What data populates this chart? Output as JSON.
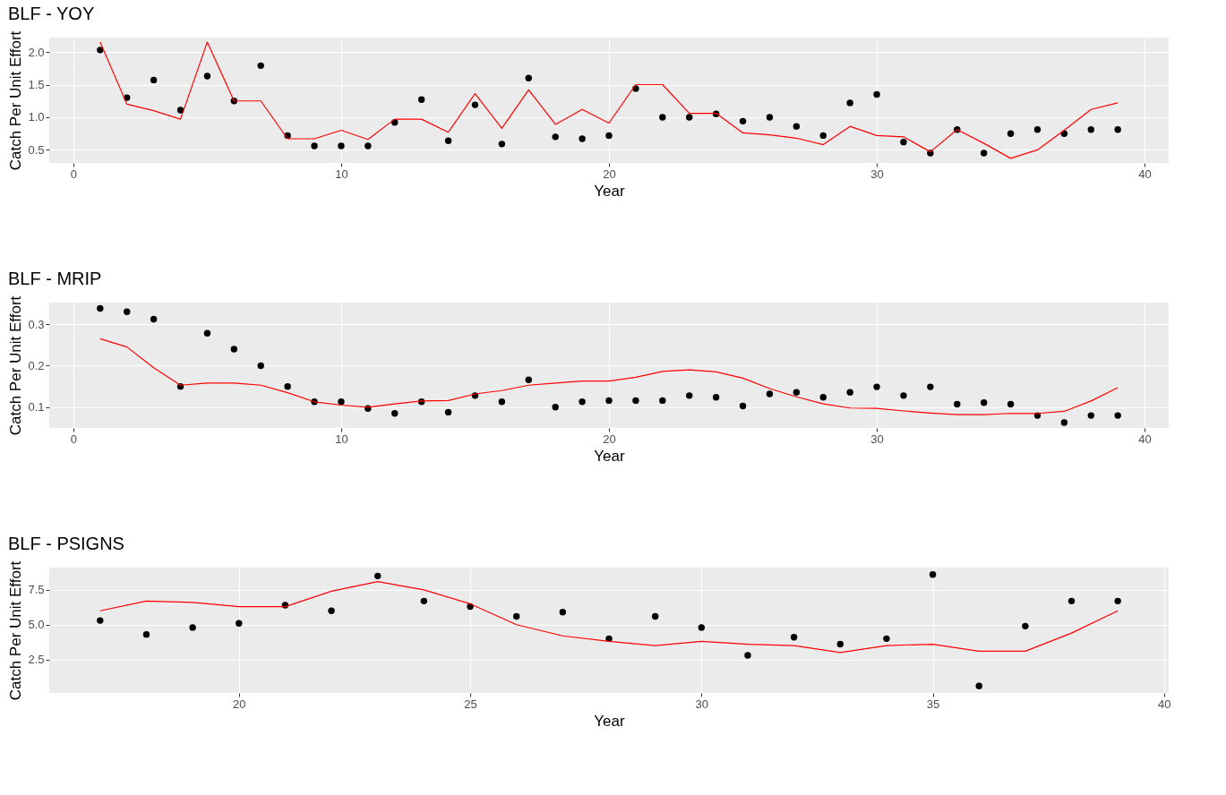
{
  "chart_data": [
    {
      "type": "line",
      "title": "BLF - YOY",
      "xlabel": "Year",
      "ylabel": "Catch Per Unit Effort",
      "grid": true,
      "x": [
        1,
        2,
        3,
        4,
        5,
        6,
        7,
        8,
        9,
        10,
        11,
        12,
        13,
        14,
        15,
        16,
        17,
        18,
        19,
        20,
        21,
        22,
        23,
        24,
        25,
        26,
        27,
        28,
        29,
        30,
        31,
        32,
        33,
        34,
        35,
        36,
        37,
        38,
        39
      ],
      "xlim": [
        -0.9,
        40.9
      ],
      "xticks": [
        0,
        10,
        20,
        30,
        40
      ],
      "ylim": [
        0.3,
        2.22
      ],
      "yticks": [
        0.5,
        {
          "value": 1,
          "label": "1.0"
        },
        1.5,
        {
          "value": 2,
          "label": "2.0"
        }
      ],
      "series": [
        {
          "type": "scatter",
          "marker": "circle",
          "color": "#000000",
          "values": [
            2.03,
            1.3,
            1.57,
            1.11,
            1.63,
            1.25,
            1.79,
            0.72,
            0.56,
            0.56,
            0.56,
            0.92,
            1.27,
            0.64,
            1.19,
            0.59,
            1.6,
            0.7,
            0.67,
            0.72,
            1.44,
            1.0,
            1.0,
            1.05,
            0.94,
            1.0,
            0.86,
            0.72,
            1.22,
            1.35,
            0.62,
            0.45,
            0.81,
            0.45,
            0.75,
            0.81,
            0.75,
            0.81,
            0.81
          ]
        },
        {
          "type": "line",
          "color": "#ff0000",
          "values": [
            2.15,
            1.2,
            1.1,
            0.97,
            2.15,
            1.25,
            1.25,
            0.67,
            0.67,
            0.8,
            0.66,
            0.97,
            0.97,
            0.77,
            1.36,
            0.83,
            1.42,
            0.89,
            1.12,
            0.91,
            1.5,
            1.5,
            1.06,
            1.06,
            0.76,
            0.73,
            0.68,
            0.58,
            0.86,
            0.72,
            0.7,
            0.47,
            0.81,
            0.6,
            0.37,
            0.5,
            0.8,
            1.12,
            1.22
          ]
        }
      ]
    },
    {
      "type": "line",
      "title": "BLF - MRIP",
      "xlabel": "Year",
      "ylabel": "Catch Per Unit Effort",
      "grid": true,
      "x": [
        1,
        2,
        3,
        4,
        5,
        6,
        7,
        8,
        9,
        10,
        11,
        12,
        13,
        14,
        15,
        16,
        17,
        18,
        19,
        20,
        21,
        22,
        23,
        24,
        25,
        26,
        27,
        28,
        29,
        30,
        31,
        32,
        33,
        34,
        35,
        36,
        37,
        38,
        39
      ],
      "xlim": [
        -0.9,
        40.9
      ],
      "xticks": [
        0,
        10,
        20,
        30,
        40
      ],
      "ylim": [
        0.05,
        0.352
      ],
      "yticks": [
        0.1,
        0.2,
        0.3
      ],
      "series": [
        {
          "type": "scatter",
          "marker": "circle",
          "color": "#000000",
          "values": [
            0.338,
            0.33,
            0.312,
            0.15,
            0.278,
            0.24,
            0.2,
            0.15,
            0.113,
            0.113,
            0.097,
            0.085,
            0.113,
            0.088,
            0.128,
            0.113,
            0.166,
            0.1,
            0.113,
            0.116,
            0.116,
            0.116,
            0.128,
            0.124,
            0.103,
            0.132,
            0.136,
            0.124,
            0.136,
            0.149,
            0.128,
            0.149,
            0.107,
            0.111,
            0.107,
            0.08,
            0.063,
            0.08,
            0.08
          ]
        },
        {
          "type": "line",
          "color": "#ff0000",
          "values": [
            0.265,
            0.245,
            0.195,
            0.153,
            0.158,
            0.158,
            0.153,
            0.135,
            0.113,
            0.105,
            0.1,
            0.108,
            0.115,
            0.116,
            0.132,
            0.14,
            0.153,
            0.158,
            0.163,
            0.163,
            0.172,
            0.186,
            0.19,
            0.185,
            0.17,
            0.145,
            0.125,
            0.108,
            0.098,
            0.097,
            0.091,
            0.086,
            0.082,
            0.082,
            0.085,
            0.085,
            0.09,
            0.115,
            0.147
          ]
        }
      ]
    },
    {
      "type": "line",
      "title": "BLF - PSIGNS",
      "xlabel": "Year",
      "ylabel": "Catch Per Unit Effort",
      "grid": true,
      "x": [
        17,
        18,
        19,
        20,
        21,
        22,
        23,
        24,
        25,
        26,
        27,
        28,
        29,
        30,
        31,
        32,
        33,
        34,
        35,
        36,
        37,
        38,
        39
      ],
      "xlim": [
        15.9,
        40.1
      ],
      "xticks": [
        20,
        25,
        30,
        35,
        40
      ],
      "ylim": [
        0.1,
        9.1
      ],
      "yticks": [
        2.5,
        {
          "value": 5,
          "label": "5.0"
        },
        7.5
      ],
      "series": [
        {
          "type": "scatter",
          "marker": "circle",
          "color": "#000000",
          "values": [
            5.3,
            4.3,
            4.8,
            5.1,
            6.4,
            6.0,
            8.5,
            6.7,
            6.3,
            5.6,
            5.9,
            4.0,
            5.6,
            4.8,
            2.8,
            4.1,
            3.6,
            4.0,
            8.6,
            0.6,
            4.9,
            6.7,
            6.7
          ]
        },
        {
          "type": "line",
          "color": "#ff0000",
          "values": [
            6.0,
            6.7,
            6.6,
            6.3,
            6.3,
            7.4,
            8.1,
            7.5,
            6.5,
            5.0,
            4.2,
            3.8,
            3.5,
            3.8,
            3.6,
            3.5,
            3.0,
            3.5,
            3.6,
            3.1,
            3.1,
            4.4,
            6.0
          ]
        }
      ]
    }
  ]
}
